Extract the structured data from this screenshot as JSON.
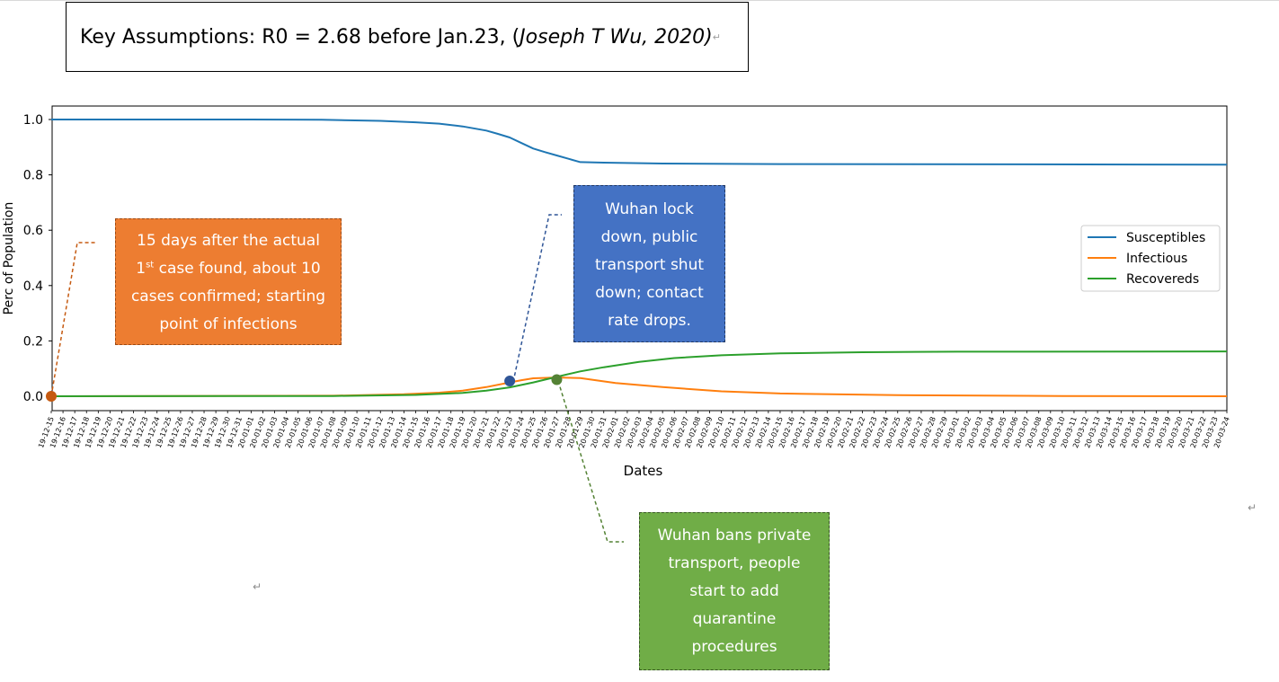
{
  "header": {
    "title_prefix": "Key Assumptions: R0 = 2.68 before Jan.23, (",
    "title_citation": "Joseph T Wu, 2020)",
    "return_mark": "↵"
  },
  "annotations": {
    "orange": {
      "line1": "15 days after the actual",
      "line2_num": "1",
      "line2_sup": "st",
      "line2_rest": " case found, about 10",
      "line3": "cases confirmed; starting",
      "line4": "point of infections"
    },
    "blue": {
      "line1": "Wuhan lock",
      "line2": "down, public",
      "line3": "transport shut",
      "line4": "down; contact",
      "line5": "rate drops."
    },
    "green": {
      "line1": "Wuhan bans private",
      "line2": "transport, people",
      "line3": "start to add",
      "line4": "quarantine",
      "line5": "procedures"
    }
  },
  "chart_data": {
    "type": "line",
    "title": "",
    "xlabel": "Dates",
    "ylabel": "Perc of Population",
    "ylim": [
      0,
      1
    ],
    "yticks": [
      "0.0",
      "0.2",
      "0.4",
      "0.6",
      "0.8",
      "1.0"
    ],
    "x_start": "19-12-15",
    "x_end": "20-03-24",
    "x": [
      "19-12-15",
      "19-12-16",
      "19-12-17",
      "19-12-18",
      "19-12-19",
      "19-12-20",
      "19-12-21",
      "19-12-22",
      "19-12-23",
      "19-12-24",
      "19-12-25",
      "19-12-26",
      "19-12-27",
      "19-12-28",
      "19-12-29",
      "19-12-30",
      "19-12-31",
      "20-01-01",
      "20-01-02",
      "20-01-03",
      "20-01-04",
      "20-01-05",
      "20-01-06",
      "20-01-07",
      "20-01-08",
      "20-01-09",
      "20-01-10",
      "20-01-11",
      "20-01-12",
      "20-01-13",
      "20-01-14",
      "20-01-15",
      "20-01-16",
      "20-01-17",
      "20-01-18",
      "20-01-19",
      "20-01-20",
      "20-01-21",
      "20-01-22",
      "20-01-23",
      "20-01-24",
      "20-01-25",
      "20-01-26",
      "20-01-27",
      "20-01-28",
      "20-01-29",
      "20-01-30",
      "20-01-31",
      "20-02-01",
      "20-02-02",
      "20-02-03",
      "20-02-04",
      "20-02-05",
      "20-02-06",
      "20-02-07",
      "20-02-08",
      "20-02-09",
      "20-02-10",
      "20-02-11",
      "20-02-12",
      "20-02-13",
      "20-02-14",
      "20-02-15",
      "20-02-16",
      "20-02-17",
      "20-02-18",
      "20-02-19",
      "20-02-20",
      "20-02-21",
      "20-02-22",
      "20-02-23",
      "20-02-24",
      "20-02-25",
      "20-02-26",
      "20-02-27",
      "20-02-28",
      "20-02-29",
      "20-03-01",
      "20-03-02",
      "20-03-03",
      "20-03-04",
      "20-03-05",
      "20-03-06",
      "20-03-07",
      "20-03-08",
      "20-03-09",
      "20-03-10",
      "20-03-11",
      "20-03-12",
      "20-03-13",
      "20-03-14",
      "20-03-15",
      "20-03-16",
      "20-03-17",
      "20-03-18",
      "20-03-19",
      "20-03-20",
      "20-03-21",
      "20-03-22",
      "20-03-23",
      "20-03-24"
    ],
    "series": [
      {
        "name": "Susceptibles",
        "color": "#1f77b4",
        "points": [
          [
            "19-12-15",
            1.0
          ],
          [
            "20-01-01",
            1.0
          ],
          [
            "20-01-07",
            0.999
          ],
          [
            "20-01-12",
            0.995
          ],
          [
            "20-01-15",
            0.99
          ],
          [
            "20-01-17",
            0.985
          ],
          [
            "20-01-19",
            0.975
          ],
          [
            "20-01-21",
            0.96
          ],
          [
            "20-01-22",
            0.948
          ],
          [
            "20-01-23",
            0.935
          ],
          [
            "20-01-24",
            0.915
          ],
          [
            "20-01-25",
            0.895
          ],
          [
            "20-01-26",
            0.882
          ],
          [
            "20-01-27",
            0.87
          ],
          [
            "20-01-28",
            0.858
          ],
          [
            "20-01-29",
            0.846
          ],
          [
            "20-01-31",
            0.844
          ],
          [
            "20-02-05",
            0.841
          ],
          [
            "20-02-15",
            0.839
          ],
          [
            "20-03-24",
            0.837
          ]
        ]
      },
      {
        "name": "Infectious",
        "color": "#ff7f0e",
        "points": [
          [
            "19-12-15",
            0.0
          ],
          [
            "20-01-08",
            0.002
          ],
          [
            "20-01-14",
            0.007
          ],
          [
            "20-01-17",
            0.013
          ],
          [
            "20-01-19",
            0.02
          ],
          [
            "20-01-21",
            0.033
          ],
          [
            "20-01-23",
            0.05
          ],
          [
            "20-01-24",
            0.058
          ],
          [
            "20-01-25",
            0.065
          ],
          [
            "20-01-27",
            0.068
          ],
          [
            "20-01-29",
            0.066
          ],
          [
            "20-02-01",
            0.048
          ],
          [
            "20-02-05",
            0.033
          ],
          [
            "20-02-10",
            0.018
          ],
          [
            "20-02-15",
            0.01
          ],
          [
            "20-02-25",
            0.004
          ],
          [
            "20-03-10",
            0.001
          ],
          [
            "20-03-24",
            0.0
          ]
        ]
      },
      {
        "name": "Recovereds",
        "color": "#2ca02c",
        "points": [
          [
            "19-12-15",
            0.0
          ],
          [
            "20-01-08",
            0.001
          ],
          [
            "20-01-15",
            0.005
          ],
          [
            "20-01-19",
            0.012
          ],
          [
            "20-01-21",
            0.02
          ],
          [
            "20-01-23",
            0.032
          ],
          [
            "20-01-25",
            0.05
          ],
          [
            "20-01-27",
            0.07
          ],
          [
            "20-01-29",
            0.09
          ],
          [
            "20-01-31",
            0.105
          ],
          [
            "20-02-03",
            0.124
          ],
          [
            "20-02-06",
            0.138
          ],
          [
            "20-02-10",
            0.148
          ],
          [
            "20-02-15",
            0.155
          ],
          [
            "20-02-22",
            0.159
          ],
          [
            "20-03-01",
            0.161
          ],
          [
            "20-03-24",
            0.162
          ]
        ]
      }
    ],
    "markers": [
      {
        "x": "19-12-15",
        "y": 0.0,
        "color": "#c55a11"
      },
      {
        "x": "20-01-23",
        "y": 0.055,
        "color": "#2f5597"
      },
      {
        "x": "20-01-27",
        "y": 0.06,
        "color": "#548235"
      }
    ],
    "legend": "center-right",
    "grid": false
  }
}
